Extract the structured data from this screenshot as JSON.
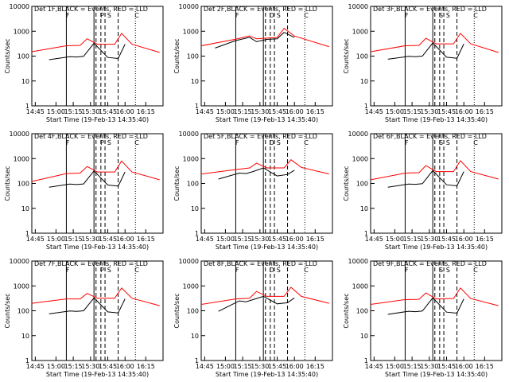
{
  "chart_data": [
    {
      "type": "line",
      "title": "Det 1F,BLACK = Events, RED = LLD",
      "ylabel": "Counts/sec",
      "xlabel": "Start Time (19-Feb-13 14:35:40)",
      "xticks": [
        "14:45",
        "15:00",
        "15:15",
        "15:30",
        "15:45",
        "16:00",
        "16:15"
      ],
      "yticks": [
        "1",
        "10",
        "100",
        "1000",
        "10000"
      ],
      "ylim": [
        1,
        10000
      ],
      "log_y": true,
      "markers": [
        "F",
        "P",
        "S",
        "C"
      ],
      "series_colors": [
        "#000000",
        "#ff0000"
      ],
      "events": [
        [
          14.65,
          72
        ],
        [
          14.95,
          95
        ],
        [
          15.05,
          92
        ],
        [
          15.15,
          98
        ],
        [
          15.3,
          330
        ],
        [
          15.5,
          88
        ],
        [
          15.65,
          80
        ],
        [
          15.75,
          300
        ]
      ],
      "lld": [
        [
          14.4,
          150
        ],
        [
          14.9,
          260
        ],
        [
          15.1,
          270
        ],
        [
          15.2,
          500
        ],
        [
          15.35,
          300
        ],
        [
          15.6,
          300
        ],
        [
          15.7,
          820
        ],
        [
          15.85,
          300
        ],
        [
          16.25,
          140
        ]
      ]
    },
    {
      "type": "line",
      "title": "Det 2F,BLACK = Events, RED = LLD",
      "ylabel": "Counts/sec",
      "xlabel": "Start Time (19-Feb-13 14:35:40)",
      "xticks": [
        "14:45",
        "15:00",
        "15:15",
        "15:30",
        "15:45",
        "16:00",
        "16:15"
      ],
      "yticks": [
        "1",
        "10",
        "100",
        "1000",
        "10000"
      ],
      "ylim": [
        1,
        10000
      ],
      "log_y": true,
      "markers": [
        "F",
        "D",
        "S",
        "C"
      ],
      "series_colors": [
        "#000000",
        "#ff0000"
      ],
      "events": [
        [
          14.6,
          210
        ],
        [
          14.9,
          420
        ],
        [
          15.1,
          570
        ],
        [
          15.2,
          380
        ],
        [
          15.35,
          470
        ],
        [
          15.5,
          500
        ],
        [
          15.6,
          900
        ],
        [
          15.75,
          560
        ]
      ],
      "lld": [
        [
          14.4,
          260
        ],
        [
          14.9,
          480
        ],
        [
          15.1,
          650
        ],
        [
          15.2,
          500
        ],
        [
          15.35,
          530
        ],
        [
          15.5,
          560
        ],
        [
          15.6,
          1300
        ],
        [
          15.75,
          640
        ],
        [
          16.25,
          240
        ]
      ]
    },
    {
      "type": "line",
      "title": "Det 3F,BLACK = Events, RED = LLD",
      "ylabel": "Counts/sec",
      "xlabel": "Start Time (19-Feb-13 14:35:40)",
      "xticks": [
        "14:45",
        "15:00",
        "15:15",
        "15:30",
        "15:45",
        "16:00",
        "16:15"
      ],
      "yticks": [
        "1",
        "10",
        "100",
        "1000",
        "10000"
      ],
      "ylim": [
        1,
        10000
      ],
      "log_y": true,
      "markers": [
        "F",
        "S",
        "S",
        "C"
      ],
      "series_colors": [
        "#000000",
        "#ff0000"
      ],
      "events": [
        [
          14.65,
          75
        ],
        [
          14.95,
          98
        ],
        [
          15.05,
          95
        ],
        [
          15.15,
          100
        ],
        [
          15.3,
          340
        ],
        [
          15.5,
          90
        ],
        [
          15.65,
          82
        ],
        [
          15.75,
          310
        ]
      ],
      "lld": [
        [
          14.4,
          150
        ],
        [
          14.9,
          260
        ],
        [
          15.1,
          270
        ],
        [
          15.2,
          520
        ],
        [
          15.35,
          310
        ],
        [
          15.6,
          310
        ],
        [
          15.7,
          820
        ],
        [
          15.85,
          310
        ],
        [
          16.25,
          140
        ]
      ]
    },
    {
      "type": "line",
      "title": "Det 4F,BLACK = Events, RED = LLD",
      "ylabel": "Counts/sec",
      "xlabel": "Start Time (19-Feb-13 14:35:40)",
      "xticks": [
        "14:45",
        "15:00",
        "15:15",
        "15:30",
        "15:45",
        "16:00",
        "16:15"
      ],
      "yticks": [
        "1",
        "10",
        "100",
        "1000",
        "10000"
      ],
      "ylim": [
        1,
        10000
      ],
      "log_y": true,
      "markers": [
        "F",
        "P",
        "S",
        "C"
      ],
      "series_colors": [
        "#000000",
        "#ff0000"
      ],
      "events": [
        [
          14.65,
          70
        ],
        [
          14.95,
          94
        ],
        [
          15.05,
          90
        ],
        [
          15.15,
          96
        ],
        [
          15.3,
          320
        ],
        [
          15.5,
          86
        ],
        [
          15.65,
          78
        ],
        [
          15.75,
          290
        ]
      ],
      "lld": [
        [
          14.4,
          120
        ],
        [
          14.9,
          250
        ],
        [
          15.1,
          260
        ],
        [
          15.2,
          480
        ],
        [
          15.35,
          290
        ],
        [
          15.6,
          290
        ],
        [
          15.7,
          800
        ],
        [
          15.85,
          290
        ],
        [
          16.25,
          140
        ]
      ]
    },
    {
      "type": "line",
      "title": "Det 5F,BLACK = Events, RED = LLD",
      "ylabel": "Counts/sec",
      "xlabel": "Start Time (19-Feb-13 14:35:40)",
      "xticks": [
        "14:45",
        "15:00",
        "15:15",
        "15:30",
        "15:45",
        "16:00",
        "16:15"
      ],
      "yticks": [
        "1",
        "10",
        "100",
        "1000",
        "10000"
      ],
      "ylim": [
        1,
        10000
      ],
      "log_y": true,
      "markers": [
        "F",
        "D",
        "S",
        "C"
      ],
      "series_colors": [
        "#000000",
        "#ff0000"
      ],
      "events": [
        [
          14.65,
          150
        ],
        [
          14.95,
          260
        ],
        [
          15.05,
          250
        ],
        [
          15.15,
          300
        ],
        [
          15.3,
          420
        ],
        [
          15.5,
          200
        ],
        [
          15.65,
          230
        ],
        [
          15.75,
          340
        ]
      ],
      "lld": [
        [
          14.4,
          240
        ],
        [
          14.9,
          360
        ],
        [
          15.1,
          420
        ],
        [
          15.2,
          650
        ],
        [
          15.35,
          420
        ],
        [
          15.6,
          420
        ],
        [
          15.7,
          900
        ],
        [
          15.85,
          440
        ],
        [
          16.25,
          240
        ]
      ]
    },
    {
      "type": "line",
      "title": "Det 6F,BLACK = Events, RED = LLD",
      "ylabel": "Counts/sec",
      "xlabel": "Start Time (19-Feb-13 14:35:40)",
      "xticks": [
        "14:45",
        "15:00",
        "15:15",
        "15:30",
        "15:45",
        "16:00",
        "16:15"
      ],
      "yticks": [
        "1",
        "10",
        "100",
        "1000",
        "10000"
      ],
      "ylim": [
        1,
        10000
      ],
      "log_y": true,
      "markers": [
        "F",
        "S",
        "S",
        "C"
      ],
      "series_colors": [
        "#000000",
        "#ff0000"
      ],
      "events": [
        [
          14.65,
          70
        ],
        [
          14.95,
          95
        ],
        [
          15.05,
          92
        ],
        [
          15.15,
          98
        ],
        [
          15.3,
          330
        ],
        [
          15.5,
          88
        ],
        [
          15.65,
          80
        ],
        [
          15.75,
          300
        ]
      ],
      "lld": [
        [
          14.4,
          140
        ],
        [
          14.9,
          260
        ],
        [
          15.1,
          270
        ],
        [
          15.2,
          520
        ],
        [
          15.35,
          300
        ],
        [
          15.6,
          300
        ],
        [
          15.7,
          820
        ],
        [
          15.85,
          300
        ],
        [
          16.25,
          150
        ]
      ]
    },
    {
      "type": "line",
      "title": "Det 7F,BLACK = Events, RED = LLD",
      "ylabel": "Counts/sec",
      "xlabel": "Start Time (19-Feb-13 14:35:40)",
      "xticks": [
        "14:45",
        "15:00",
        "15:15",
        "15:30",
        "15:45",
        "16:00",
        "16:15"
      ],
      "yticks": [
        "1",
        "10",
        "100",
        "1000",
        "10000"
      ],
      "ylim": [
        1,
        10000
      ],
      "log_y": true,
      "markers": [
        "F",
        "P",
        "S",
        "C"
      ],
      "series_colors": [
        "#000000",
        "#ff0000"
      ],
      "events": [
        [
          14.65,
          75
        ],
        [
          14.95,
          98
        ],
        [
          15.05,
          94
        ],
        [
          15.15,
          100
        ],
        [
          15.3,
          330
        ],
        [
          15.5,
          90
        ],
        [
          15.65,
          82
        ],
        [
          15.75,
          300
        ]
      ],
      "lld": [
        [
          14.4,
          200
        ],
        [
          14.9,
          300
        ],
        [
          15.1,
          300
        ],
        [
          15.2,
          500
        ],
        [
          15.35,
          320
        ],
        [
          15.6,
          320
        ],
        [
          15.7,
          820
        ],
        [
          15.85,
          320
        ],
        [
          16.25,
          160
        ]
      ]
    },
    {
      "type": "line",
      "title": "Det 8F,BLACK = Events, RED = LLD",
      "ylabel": "Counts/sec",
      "xlabel": "Start Time (19-Feb-13 14:35:40)",
      "xticks": [
        "14:45",
        "15:00",
        "15:15",
        "15:30",
        "15:45",
        "16:00",
        "16:15"
      ],
      "yticks": [
        "1",
        "10",
        "100",
        "1000",
        "10000"
      ],
      "ylim": [
        1,
        10000
      ],
      "log_y": true,
      "markers": [
        "F",
        "D",
        "S",
        "C"
      ],
      "series_colors": [
        "#000000",
        "#ff0000"
      ],
      "events": [
        [
          14.65,
          95
        ],
        [
          14.95,
          250
        ],
        [
          15.05,
          230
        ],
        [
          15.15,
          280
        ],
        [
          15.3,
          380
        ],
        [
          15.5,
          190
        ],
        [
          15.65,
          210
        ],
        [
          15.75,
          330
        ]
      ],
      "lld": [
        [
          14.4,
          180
        ],
        [
          14.9,
          300
        ],
        [
          15.1,
          320
        ],
        [
          15.2,
          600
        ],
        [
          15.35,
          380
        ],
        [
          15.6,
          380
        ],
        [
          15.7,
          880
        ],
        [
          15.85,
          380
        ],
        [
          16.25,
          200
        ]
      ]
    },
    {
      "type": "line",
      "title": "Det 9F,BLACK = Events, RED = LLD",
      "ylabel": "Counts/sec",
      "xlabel": "Start Time (19-Feb-13 14:35:40)",
      "xticks": [
        "14:45",
        "15:00",
        "15:15",
        "15:30",
        "15:45",
        "16:00",
        "16:15"
      ],
      "yticks": [
        "1",
        "10",
        "100",
        "1000",
        "10000"
      ],
      "ylim": [
        1,
        10000
      ],
      "log_y": true,
      "markers": [
        "F",
        "S",
        "S",
        "C"
      ],
      "series_colors": [
        "#000000",
        "#ff0000"
      ],
      "events": [
        [
          14.65,
          72
        ],
        [
          14.95,
          96
        ],
        [
          15.05,
          92
        ],
        [
          15.15,
          98
        ],
        [
          15.3,
          330
        ],
        [
          15.5,
          88
        ],
        [
          15.65,
          80
        ],
        [
          15.75,
          300
        ]
      ],
      "lld": [
        [
          14.4,
          180
        ],
        [
          14.9,
          280
        ],
        [
          15.1,
          290
        ],
        [
          15.2,
          520
        ],
        [
          15.35,
          300
        ],
        [
          15.6,
          310
        ],
        [
          15.7,
          820
        ],
        [
          15.85,
          310
        ],
        [
          16.25,
          160
        ]
      ]
    }
  ]
}
